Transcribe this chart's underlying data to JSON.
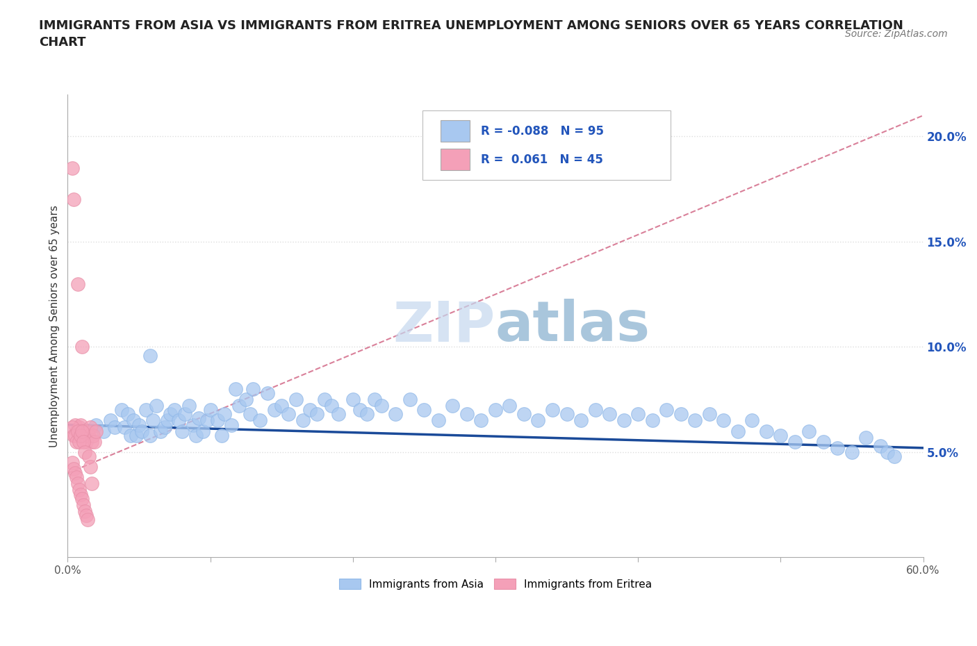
{
  "title": "IMMIGRANTS FROM ASIA VS IMMIGRANTS FROM ERITREA UNEMPLOYMENT AMONG SENIORS OVER 65 YEARS CORRELATION\nCHART",
  "source_text": "Source: ZipAtlas.com",
  "ylabel": "Unemployment Among Seniors over 65 years",
  "xlim": [
    0.0,
    0.6
  ],
  "ylim": [
    0.0,
    0.22
  ],
  "xticks": [
    0.0,
    0.1,
    0.2,
    0.3,
    0.4,
    0.5,
    0.6
  ],
  "xticklabels": [
    "0.0%",
    "",
    "",
    "",
    "",
    "",
    "60.0%"
  ],
  "yticks_right": [
    0.05,
    0.1,
    0.15,
    0.2
  ],
  "ytick_right_labels": [
    "5.0%",
    "10.0%",
    "15.0%",
    "20.0%"
  ],
  "legend_r_asia": "-0.088",
  "legend_n_asia": "95",
  "legend_r_eritrea": "0.061",
  "legend_n_eritrea": "45",
  "blue_color": "#A8C8F0",
  "blue_edge_color": "#90B8E8",
  "blue_line_color": "#1A4A99",
  "pink_color": "#F4A0B8",
  "pink_edge_color": "#E890A8",
  "pink_line_color": "#D06080",
  "watermark_zip_color": "#C5D8EE",
  "watermark_atlas_color": "#90B8D8",
  "background_color": "#FFFFFF",
  "grid_color": "#DDDDDD",
  "axis_color": "#AAAAAA",
  "tick_color": "#555555",
  "asia_x": [
    0.02,
    0.025,
    0.03,
    0.033,
    0.038,
    0.04,
    0.042,
    0.044,
    0.046,
    0.048,
    0.05,
    0.052,
    0.055,
    0.058,
    0.06,
    0.062,
    0.065,
    0.068,
    0.07,
    0.072,
    0.075,
    0.078,
    0.08,
    0.082,
    0.085,
    0.088,
    0.09,
    0.092,
    0.095,
    0.098,
    0.1,
    0.105,
    0.108,
    0.11,
    0.115,
    0.118,
    0.12,
    0.125,
    0.128,
    0.13,
    0.135,
    0.14,
    0.145,
    0.15,
    0.155,
    0.16,
    0.165,
    0.17,
    0.175,
    0.18,
    0.185,
    0.19,
    0.2,
    0.205,
    0.21,
    0.215,
    0.22,
    0.23,
    0.24,
    0.25,
    0.26,
    0.27,
    0.28,
    0.29,
    0.3,
    0.31,
    0.32,
    0.33,
    0.34,
    0.35,
    0.36,
    0.37,
    0.38,
    0.39,
    0.4,
    0.41,
    0.42,
    0.43,
    0.44,
    0.45,
    0.46,
    0.47,
    0.48,
    0.49,
    0.5,
    0.51,
    0.52,
    0.53,
    0.54,
    0.55,
    0.56,
    0.57,
    0.575,
    0.58,
    0.058
  ],
  "asia_y": [
    0.063,
    0.06,
    0.065,
    0.062,
    0.07,
    0.062,
    0.068,
    0.058,
    0.065,
    0.058,
    0.063,
    0.06,
    0.07,
    0.058,
    0.065,
    0.072,
    0.06,
    0.062,
    0.065,
    0.068,
    0.07,
    0.065,
    0.06,
    0.068,
    0.072,
    0.063,
    0.058,
    0.066,
    0.06,
    0.065,
    0.07,
    0.065,
    0.058,
    0.068,
    0.063,
    0.08,
    0.072,
    0.075,
    0.068,
    0.08,
    0.065,
    0.078,
    0.07,
    0.072,
    0.068,
    0.075,
    0.065,
    0.07,
    0.068,
    0.075,
    0.072,
    0.068,
    0.075,
    0.07,
    0.068,
    0.075,
    0.072,
    0.068,
    0.075,
    0.07,
    0.065,
    0.072,
    0.068,
    0.065,
    0.07,
    0.072,
    0.068,
    0.065,
    0.07,
    0.068,
    0.065,
    0.07,
    0.068,
    0.065,
    0.068,
    0.065,
    0.07,
    0.068,
    0.065,
    0.068,
    0.065,
    0.06,
    0.065,
    0.06,
    0.058,
    0.055,
    0.06,
    0.055,
    0.052,
    0.05,
    0.057,
    0.053,
    0.05,
    0.048,
    0.096
  ],
  "eritrea_x": [
    0.003,
    0.004,
    0.005,
    0.006,
    0.007,
    0.008,
    0.008,
    0.009,
    0.01,
    0.01,
    0.011,
    0.012,
    0.013,
    0.014,
    0.015,
    0.016,
    0.017,
    0.018,
    0.019,
    0.02,
    0.003,
    0.004,
    0.005,
    0.006,
    0.007,
    0.008,
    0.009,
    0.01,
    0.011,
    0.012,
    0.003,
    0.004,
    0.005,
    0.006,
    0.007,
    0.008,
    0.009,
    0.01,
    0.011,
    0.012,
    0.013,
    0.014,
    0.015,
    0.016,
    0.017
  ],
  "eritrea_y": [
    0.185,
    0.17,
    0.063,
    0.06,
    0.13,
    0.062,
    0.058,
    0.063,
    0.06,
    0.1,
    0.06,
    0.058,
    0.055,
    0.06,
    0.058,
    0.062,
    0.055,
    0.058,
    0.055,
    0.06,
    0.062,
    0.058,
    0.058,
    0.055,
    0.06,
    0.055,
    0.058,
    0.06,
    0.055,
    0.05,
    0.045,
    0.042,
    0.04,
    0.038,
    0.035,
    0.032,
    0.03,
    0.028,
    0.025,
    0.022,
    0.02,
    0.018,
    0.048,
    0.043,
    0.035
  ],
  "pink_trendline_x": [
    0.0,
    0.6
  ],
  "pink_trendline_y": [
    0.04,
    0.21
  ],
  "blue_trendline_x": [
    0.0,
    0.6
  ],
  "blue_trendline_y": [
    0.063,
    0.052
  ]
}
